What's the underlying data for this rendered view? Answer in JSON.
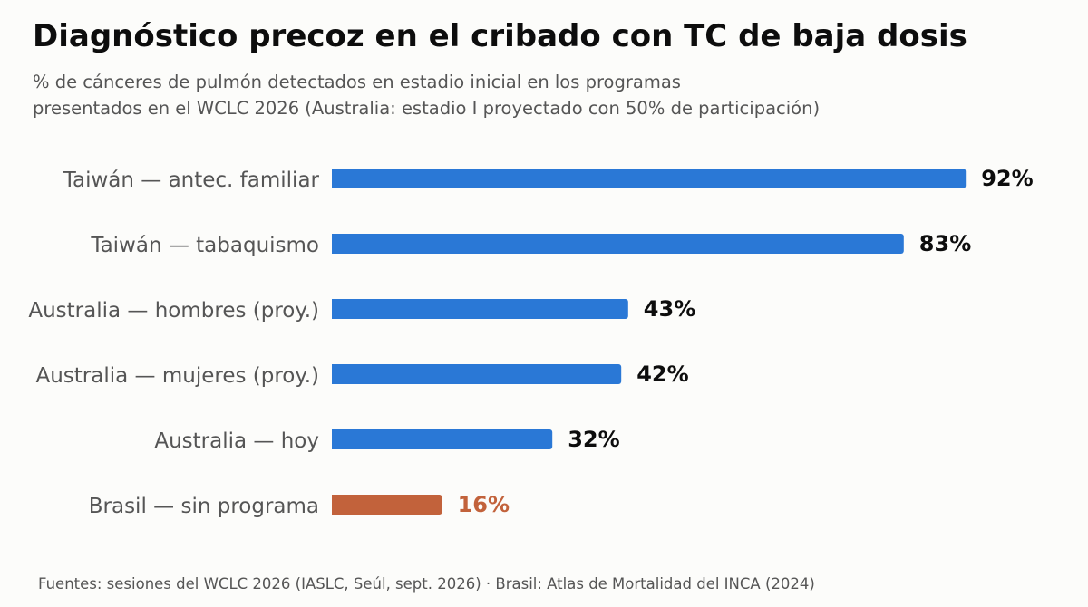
{
  "title": "Diagnóstico precoz en el cribado con TC de baja dosis",
  "subtitle_lines": [
    "% de cánceres de pulmón detectados en estadio inicial en los programas",
    "presentados en el WCLC 2026 (Australia: estadio I proyectado con 50% de participación)"
  ],
  "source": "Fuentes: sesiones del WCLC 2026 (IASLC, Seúl, sept. 2026) · Brasil: Atlas de Mortalidad del INCA (2024)",
  "colors": {
    "bar": "#2a78d6",
    "highlight": "#c2623b",
    "label": "#555555",
    "value": "#0d0d0d"
  },
  "chart_data": {
    "type": "bar",
    "orientation": "horizontal",
    "categories": [
      "Taiwán — antec. familiar",
      "Taiwán — tabaquismo",
      "Australia — hombres (proy.)",
      "Australia — mujeres (proy.)",
      "Australia — hoy",
      "Brasil — sin programa"
    ],
    "values": [
      92,
      83,
      43,
      42,
      32,
      16
    ],
    "value_labels": [
      "92%",
      "83%",
      "43%",
      "42%",
      "32%",
      "16%"
    ],
    "highlight_index": 5,
    "xlim": [
      0,
      100
    ],
    "grid": false
  }
}
